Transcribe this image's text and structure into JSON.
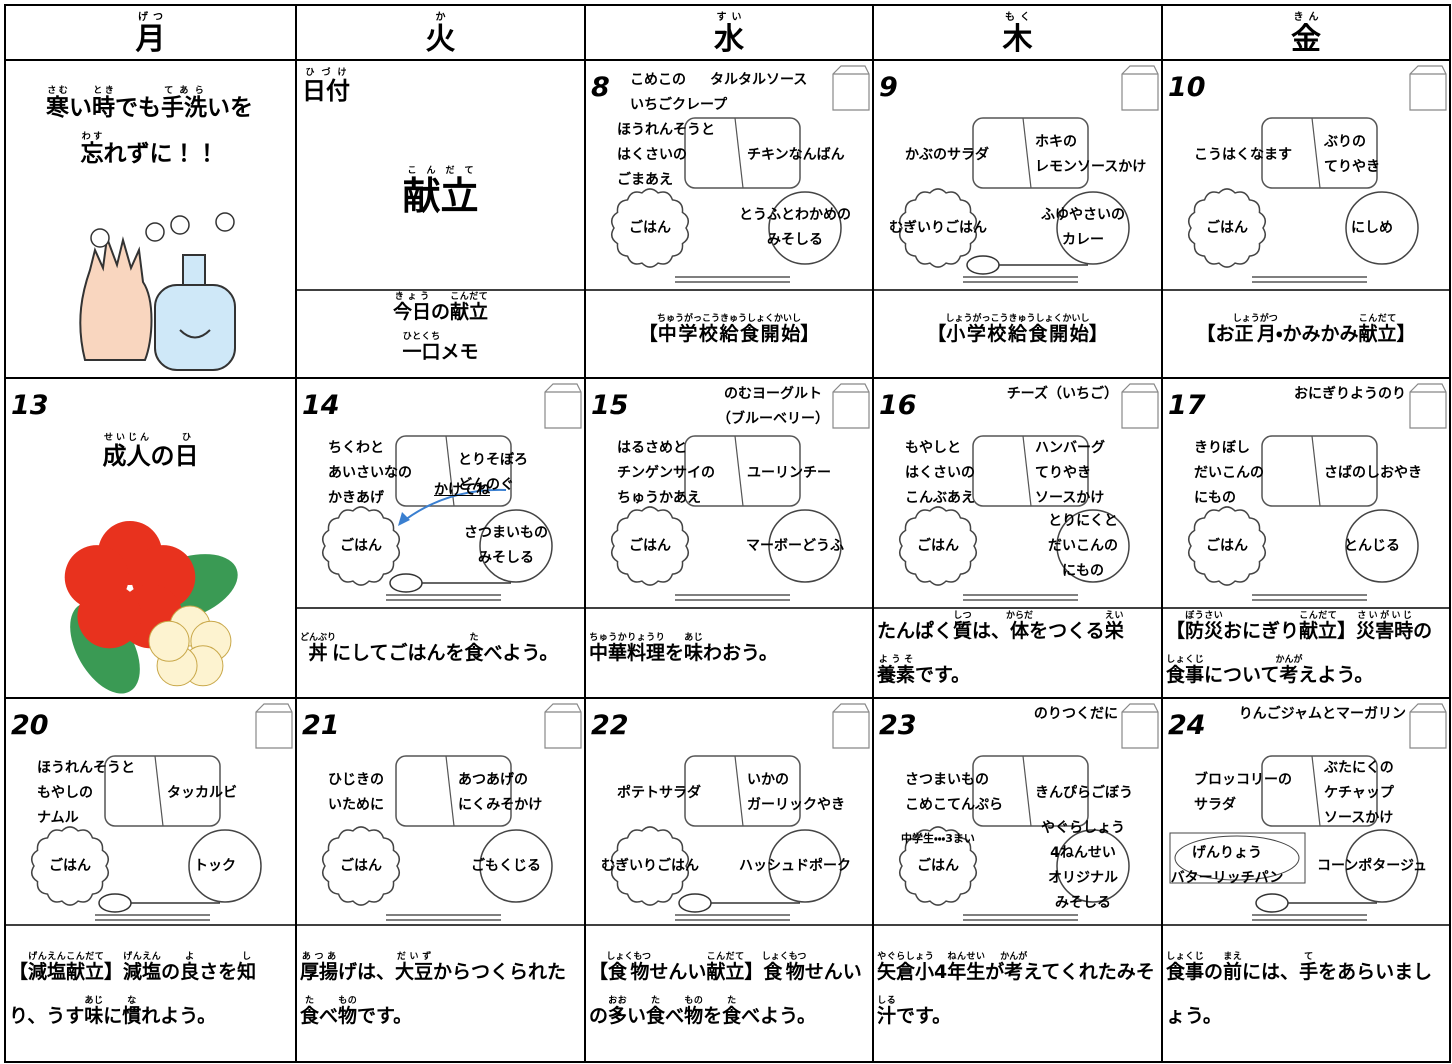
{
  "header": {
    "days": [
      {
        "text": "月",
        "ruby": "げつ"
      },
      {
        "text": "火",
        "ruby": "か"
      },
      {
        "text": "水",
        "ruby": "すい"
      },
      {
        "text": "木",
        "ruby": "もく"
      },
      {
        "text": "金",
        "ruby": "きん"
      }
    ]
  },
  "message": {
    "lines": [
      [
        {
          "text": "寒",
          "ruby": "さむ"
        },
        "い",
        {
          "text": "時",
          "ruby": "とき"
        },
        "でも",
        {
          "text": "手洗",
          "ruby": "てあら"
        },
        "いを"
      ],
      [
        {
          "text": "忘",
          "ruby": "わす"
        },
        "れずに！！"
      ]
    ]
  },
  "legend": {
    "date": {
      "text": "日付",
      "ruby": "ひづけ"
    },
    "menu": {
      "text": "献立",
      "ruby": "こんだて"
    },
    "note_lines": [
      [
        {
          "text": "今日",
          "ruby": "きょう"
        },
        "の",
        {
          "text": "献立",
          "ruby": "こんだて"
        }
      ],
      [
        {
          "text": "一口",
          "ruby": "ひとくち"
        },
        "メモ"
      ]
    ]
  },
  "days": [
    {
      "day": "8",
      "top": "こめこの\nいちごクレープ",
      "top2": "タルタルソース",
      "left": "ほうれんそうと\nはくさいの\nごまあえ",
      "right": "チキンなんばん",
      "staple": "ごはん",
      "side": "とうふとわかめの\nみそしる",
      "note": [
        "【",
        {
          "text": "中学校給食開始",
          "ruby": "ちゅうがっこうきゅうしょくかいし"
        },
        "】"
      ]
    },
    {
      "day": "9",
      "left": "かぶのサラダ",
      "right": "ホキの\nレモンソースかけ",
      "staple": "むぎいりごはん",
      "side": "ふゆやさいの\nカレー",
      "spoon": true,
      "note": [
        "【",
        {
          "text": "小学校給食開始",
          "ruby": "しょうがっこうきゅうしょくかいし"
        },
        "】"
      ]
    },
    {
      "day": "10",
      "left": "こうはくなます",
      "right": "ぶりの\nてりやき",
      "staple": "ごはん",
      "side": "にしめ",
      "note": [
        "【お",
        {
          "text": "正月",
          "ruby": "しょうがつ"
        },
        "・かみかみ",
        {
          "text": "献立",
          "ruby": "こんだて"
        },
        "】"
      ]
    },
    {
      "day": "13",
      "holiday": [
        {
          "text": "成人",
          "ruby": "せいじん"
        },
        "の",
        {
          "text": "日",
          "ruby": "ひ"
        }
      ]
    },
    {
      "day": "14",
      "left": "ちくわと\nあいさいなの\nかきあげ",
      "right": "とりそぼろ\nどんのぐ",
      "extra": "かけてね",
      "staple": "ごはん",
      "side": "さつまいもの\nみそしる",
      "spoon": true,
      "note": [
        {
          "text": "丼",
          "ruby": "どんぶり"
        },
        "にしてごはんを",
        {
          "text": "食",
          "ruby": "た"
        },
        "べよう。"
      ]
    },
    {
      "day": "15",
      "top": "のむヨーグルト\n（ブルーベリー）",
      "left": "はるさめと\nチンゲンサイの\nちゅうかあえ",
      "right": "ユーリンチー",
      "staple": "ごはん",
      "side": "マーボーどうふ",
      "note": [
        {
          "text": "中華料理",
          "ruby": "ちゅうかりょうり"
        },
        "を",
        {
          "text": "味",
          "ruby": "あじ"
        },
        "わおう。"
      ]
    },
    {
      "day": "16",
      "top": "チーズ（いちご）",
      "left": "もやしと\nはくさいの\nこんぶあえ",
      "right": "ハンバーグ\nてりやき\nソースかけ",
      "staple": "ごはん",
      "side": "とりにくと\nだいこんの\nにもの",
      "note": [
        "たんぱく",
        {
          "text": "質",
          "ruby": "しつ"
        },
        "は、",
        {
          "text": "体",
          "ruby": "からだ"
        },
        "をつくる",
        {
          "text": "栄",
          "ruby": "えい"
        },
        {
          "text": "養素",
          "ruby": "ようそ"
        },
        "です。"
      ]
    },
    {
      "day": "17",
      "top": "おにぎりようのり",
      "left": "きりぼし\nだいこんの\nにもの",
      "right": "さばのしおやき",
      "staple": "ごはん",
      "side": "とんじる",
      "note": [
        "【",
        {
          "text": "防災",
          "ruby": "ぼうさい"
        },
        "おにぎり",
        {
          "text": "献立",
          "ruby": "こんだて"
        },
        "】",
        {
          "text": "災害時",
          "ruby": "さいがいじ"
        },
        "の",
        {
          "text": "食事",
          "ruby": "しょくじ"
        },
        "について",
        {
          "text": "考",
          "ruby": "かんが"
        },
        "えよう。"
      ]
    },
    {
      "day": "20",
      "left": "ほうれんそうと\nもやしの\nナムル",
      "right": "タッカルビ",
      "staple": "ごはん",
      "side": "トック",
      "spoon": true,
      "note": [
        "【",
        {
          "text": "減塩献立",
          "ruby": "げんえんこんだて"
        },
        "】",
        {
          "text": "減塩",
          "ruby": "げんえん"
        },
        "の",
        {
          "text": "良",
          "ruby": "よ"
        },
        "さを",
        {
          "text": "知",
          "ruby": "し"
        },
        "り、うす",
        {
          "text": "味",
          "ruby": "あじ"
        },
        "に",
        {
          "text": "慣",
          "ruby": "な"
        },
        "れよう。"
      ]
    },
    {
      "day": "21",
      "left": "ひじきの\nいために",
      "right": "あつあげの\nにくみそかけ",
      "staple": "ごはん",
      "side": "ごもくじる",
      "note": [
        {
          "text": "厚揚",
          "ruby": "あつあ"
        },
        "げは、",
        {
          "text": "大豆",
          "ruby": "だいず"
        },
        "からつくられた",
        {
          "text": "食",
          "ruby": "た"
        },
        "べ",
        {
          "text": "物",
          "ruby": "もの"
        },
        "です。"
      ]
    },
    {
      "day": "22",
      "left": "ポテトサラダ",
      "right": "いかの\nガーリックやき",
      "staple": "むぎいりごはん",
      "side": "ハッシュドポーク",
      "spoon": true,
      "note": [
        "【",
        {
          "text": "食物",
          "ruby": "しょくもつ"
        },
        "せんい",
        {
          "text": "献立",
          "ruby": "こんだて"
        },
        "】",
        {
          "text": "食物",
          "ruby": "しょくもつ"
        },
        "せんいの",
        {
          "text": "多",
          "ruby": "おお"
        },
        "い",
        {
          "text": "食",
          "ruby": "た"
        },
        "べ",
        {
          "text": "物",
          "ruby": "もの"
        },
        "を",
        {
          "text": "食",
          "ruby": "た"
        },
        "べよう。"
      ]
    },
    {
      "day": "23",
      "top": "のりつくだに",
      "left": "さつまいもの\nこめこてんぷら",
      "small": "中学生・・・3まい",
      "right": "きんぴらごぼう",
      "staple": "ごはん",
      "side": "やぐらしょう\n4ねんせい\nオリジナル\nみそしる",
      "note": [
        {
          "text": "矢倉小",
          "ruby": "やぐらしょう"
        },
        "4",
        {
          "text": "年生",
          "ruby": "ねんせい"
        },
        "が",
        {
          "text": "考",
          "ruby": "かんが"
        },
        "えてくれたみそ",
        {
          "text": "汁",
          "ruby": "しる"
        },
        "です。"
      ]
    },
    {
      "day": "24",
      "top": "りんごジャムとマーガリン",
      "left": "ブロッコリーの\nサラダ",
      "right": "ぶたにくの\nケチャップ\nソースかけ",
      "staple": "げんりょう\nバターリッチパン",
      "side": "コーンポタージュ",
      "spoon": true,
      "note": [
        {
          "text": "食事",
          "ruby": "しょくじ"
        },
        "の",
        {
          "text": "前",
          "ruby": "まえ"
        },
        "には、",
        {
          "text": "手",
          "ruby": "て"
        },
        "をあらいましょう。"
      ]
    }
  ]
}
